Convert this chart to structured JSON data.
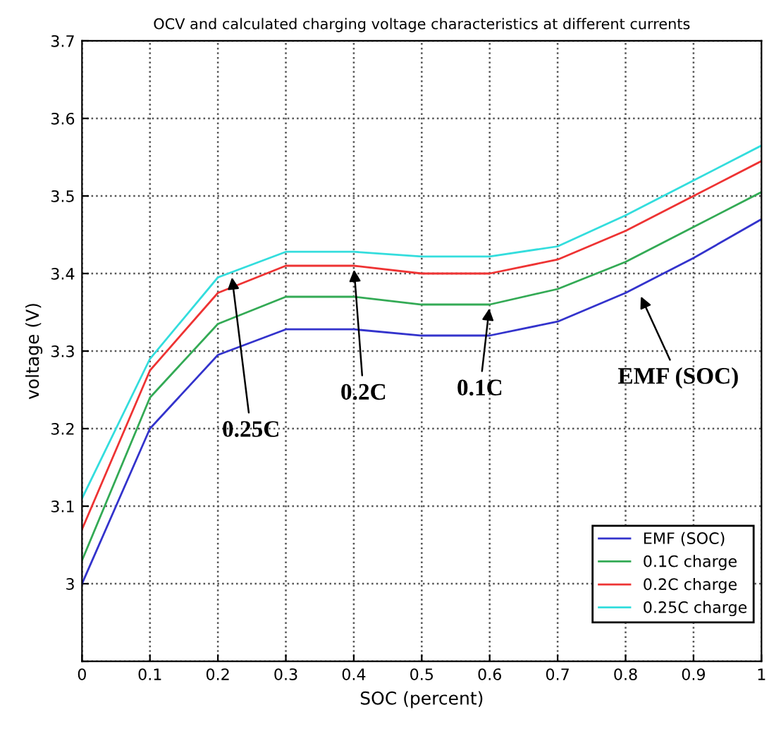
{
  "chart_data": {
    "type": "line",
    "title": "OCV and calculated charging voltage characteristics at different currents",
    "xlabel": "SOC (percent)",
    "ylabel": "voltage (V)",
    "x": [
      0,
      0.1,
      0.2,
      0.3,
      0.4,
      0.5,
      0.6,
      0.7,
      0.8,
      0.9,
      1
    ],
    "series": [
      {
        "name": "EMF (SOC)",
        "color": "#3333cc",
        "values": [
          3.0,
          3.2,
          3.295,
          3.328,
          3.328,
          3.32,
          3.32,
          3.338,
          3.375,
          3.42,
          3.47
        ]
      },
      {
        "name": "0.1C charge",
        "color": "#33aa55",
        "values": [
          3.03,
          3.24,
          3.335,
          3.37,
          3.37,
          3.36,
          3.36,
          3.38,
          3.415,
          3.46,
          3.505
        ]
      },
      {
        "name": "0.2C charge",
        "color": "#ee3333",
        "values": [
          3.07,
          3.275,
          3.375,
          3.41,
          3.41,
          3.4,
          3.4,
          3.418,
          3.455,
          3.5,
          3.545
        ]
      },
      {
        "name": "0.25C charge",
        "color": "#33dddd",
        "values": [
          3.11,
          3.29,
          3.395,
          3.428,
          3.428,
          3.422,
          3.422,
          3.435,
          3.475,
          3.52,
          3.565
        ]
      }
    ],
    "annotations": [
      {
        "text": "0.25C",
        "x": 0.22,
        "y": 3.4
      },
      {
        "text": "0.2C",
        "x": 0.4,
        "y": 3.41
      },
      {
        "text": "0.1C",
        "x": 0.6,
        "y": 3.36
      },
      {
        "text": "EMF (SOC)",
        "x": 0.82,
        "y": 3.375
      }
    ],
    "xlim": [
      0,
      1
    ],
    "ylim": [
      2.9,
      3.7
    ],
    "xticks": [
      0,
      0.1,
      0.2,
      0.3,
      0.4,
      0.5,
      0.6,
      0.7,
      0.8,
      0.9,
      1
    ],
    "yticks": [
      {
        "value": 2.9,
        "label": null
      },
      3,
      3.1,
      3.2,
      3.3,
      3.4,
      3.5,
      3.6,
      3.7
    ],
    "grid": true,
    "legend": "bottom right",
    "line_style": "solid",
    "marker": "none"
  }
}
